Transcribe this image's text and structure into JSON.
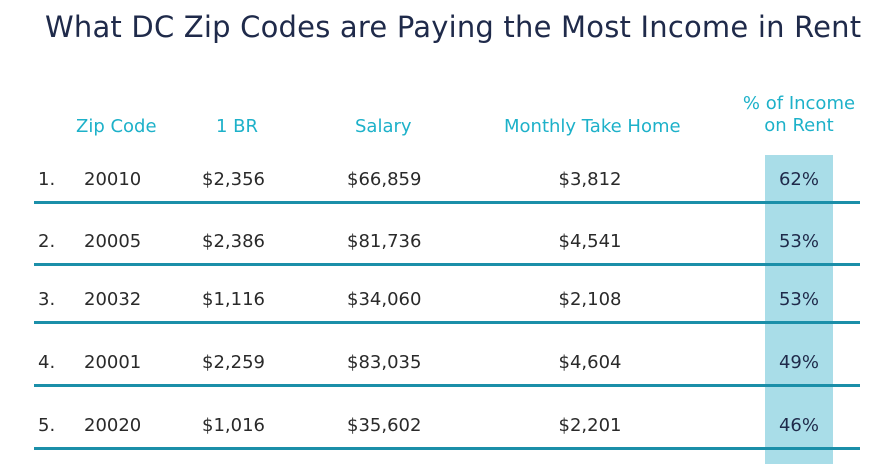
{
  "title": "What DC Zip Codes are Paying the Most Income in Rent",
  "headers": {
    "zip": "Zip Code",
    "br": "1 BR",
    "salary": "Salary",
    "take_home": "Monthly Take Home",
    "pct_line1": "% of Income",
    "pct_line2": "on Rent"
  },
  "rows": [
    {
      "rank": "1.",
      "zip": "20010",
      "br": "$2,356",
      "salary": "$66,859",
      "take_home": "$3,812",
      "pct": "62%"
    },
    {
      "rank": "2.",
      "zip": "20005",
      "br": "$2,386",
      "salary": "$81,736",
      "take_home": "$4,541",
      "pct": "53%"
    },
    {
      "rank": "3.",
      "zip": "20032",
      "br": "$1,116",
      "salary": "$34,060",
      "take_home": "$2,108",
      "pct": "53%"
    },
    {
      "rank": "4.",
      "zip": "20001",
      "br": "$2,259",
      "salary": "$83,035",
      "take_home": "$4,604",
      "pct": "49%"
    },
    {
      "rank": "5.",
      "zip": "20020",
      "br": "$1,016",
      "salary": "$35,602",
      "take_home": "$2,201",
      "pct": "46%"
    }
  ],
  "colors": {
    "header_text": "#1db1c9",
    "title_text": "#1f2a4a",
    "highlight": "#a9dde8",
    "divider": "#1b8fa9"
  }
}
